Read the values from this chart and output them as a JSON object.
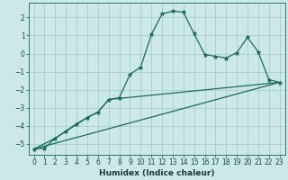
{
  "xlabel": "Humidex (Indice chaleur)",
  "background_color": "#cce8e8",
  "grid_color": "#aacccc",
  "line_color": "#1a6b5a",
  "xlim": [
    -0.5,
    23.5
  ],
  "ylim": [
    -5.6,
    2.8
  ],
  "xticks": [
    0,
    1,
    2,
    3,
    4,
    5,
    6,
    7,
    8,
    9,
    10,
    11,
    12,
    13,
    14,
    15,
    16,
    17,
    18,
    19,
    20,
    21,
    22,
    23
  ],
  "yticks": [
    -5,
    -4,
    -3,
    -2,
    -1,
    0,
    1,
    2
  ],
  "series0_x": [
    0,
    1,
    2,
    3,
    4,
    5,
    6,
    7,
    8,
    9,
    10,
    11,
    12,
    13,
    14,
    15,
    16,
    17,
    18,
    19,
    20,
    21,
    22,
    23
  ],
  "series0_y": [
    -5.3,
    -5.25,
    -4.7,
    -4.3,
    -3.9,
    -3.55,
    -3.25,
    -2.55,
    -2.45,
    -1.15,
    -0.75,
    1.05,
    2.2,
    2.35,
    2.3,
    1.1,
    -0.05,
    -0.15,
    -0.25,
    0.05,
    0.9,
    0.1,
    -1.45,
    -1.6
  ],
  "series1_x": [
    0,
    2,
    5,
    6,
    7,
    23
  ],
  "series1_y": [
    -5.3,
    -4.7,
    -3.55,
    -3.25,
    -2.55,
    -1.6
  ],
  "series2_x": [
    0,
    23
  ],
  "series2_y": [
    -5.3,
    -1.6
  ],
  "tick_fontsize": 5.5,
  "xlabel_fontsize": 6.5
}
